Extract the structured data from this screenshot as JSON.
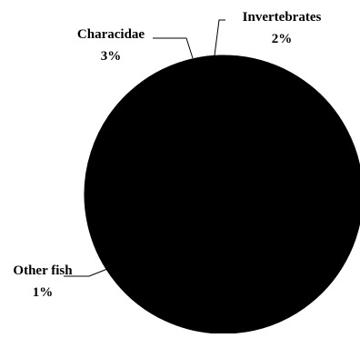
{
  "chart_data": {
    "type": "pie",
    "title": "",
    "slices": [
      {
        "label": "Invertebrates",
        "percent_label": "2%",
        "value": 2
      },
      {
        "label": "Characidae",
        "percent_label": "3%",
        "value": 3
      },
      {
        "label": "Other fish",
        "percent_label": "1%",
        "value": 1
      },
      {
        "label": "",
        "percent_label": "",
        "value": 94
      }
    ],
    "colors": {
      "slice_fill": "#000000",
      "slice_stroke": "#000000",
      "leader_line": "#000000",
      "text": "#000000"
    },
    "legend": "none"
  }
}
